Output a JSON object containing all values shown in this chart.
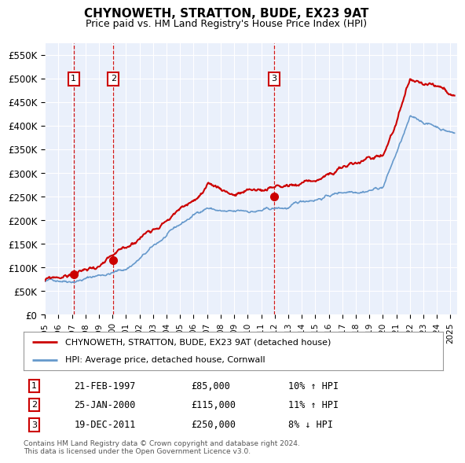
{
  "title": "CHYNOWETH, STRATTON, BUDE, EX23 9AT",
  "subtitle": "Price paid vs. HM Land Registry's House Price Index (HPI)",
  "ylabel_ticks": [
    "£0",
    "£50K",
    "£100K",
    "£150K",
    "£200K",
    "£250K",
    "£300K",
    "£350K",
    "£400K",
    "£450K",
    "£500K",
    "£550K"
  ],
  "ytick_values": [
    0,
    50000,
    100000,
    150000,
    200000,
    250000,
    300000,
    350000,
    400000,
    450000,
    500000,
    550000
  ],
  "ylim": [
    0,
    575000
  ],
  "xlim_start": 1995.0,
  "xlim_end": 2025.5,
  "background_color": "#FFFFFF",
  "plot_bg_color": "#EAF0FB",
  "grid_color": "#FFFFFF",
  "sale_color": "#CC0000",
  "hpi_color": "#6699CC",
  "sale_label": "CHYNOWETH, STRATTON, BUDE, EX23 9AT (detached house)",
  "hpi_label": "HPI: Average price, detached house, Cornwall",
  "transactions": [
    {
      "id": 1,
      "date": "21-FEB-1997",
      "year": 1997.13,
      "price": 85000,
      "pct": "10%",
      "dir": "↑"
    },
    {
      "id": 2,
      "date": "25-JAN-2000",
      "year": 2000.07,
      "price": 115000,
      "pct": "11%",
      "dir": "↑"
    },
    {
      "id": 3,
      "date": "19-DEC-2011",
      "year": 2011.96,
      "price": 250000,
      "pct": "8%",
      "dir": "↓"
    }
  ],
  "footnote": "Contains HM Land Registry data © Crown copyright and database right 2024.\nThis data is licensed under the Open Government Licence v3.0.",
  "vline_color": "#CC0000",
  "num_box_color": "#CC0000",
  "hpi_breakpoints": [
    [
      1995.0,
      70000
    ],
    [
      1997.0,
      77700
    ],
    [
      2001.0,
      105500
    ],
    [
      2004.0,
      172500
    ],
    [
      2007.0,
      230000
    ],
    [
      2009.0,
      215000
    ],
    [
      2013.0,
      220000
    ],
    [
      2016.0,
      248000
    ],
    [
      2020.0,
      278000
    ],
    [
      2022.0,
      420000
    ],
    [
      2025.3,
      390000
    ]
  ],
  "sale_breakpoints": [
    [
      1995.0,
      72000
    ],
    [
      1997.0,
      82000
    ],
    [
      2001.0,
      118000
    ],
    [
      2004.0,
      195000
    ],
    [
      2007.0,
      255000
    ],
    [
      2009.0,
      240000
    ],
    [
      2013.0,
      248000
    ],
    [
      2016.0,
      272000
    ],
    [
      2020.0,
      305000
    ],
    [
      2022.0,
      455000
    ],
    [
      2025.3,
      415000
    ]
  ]
}
